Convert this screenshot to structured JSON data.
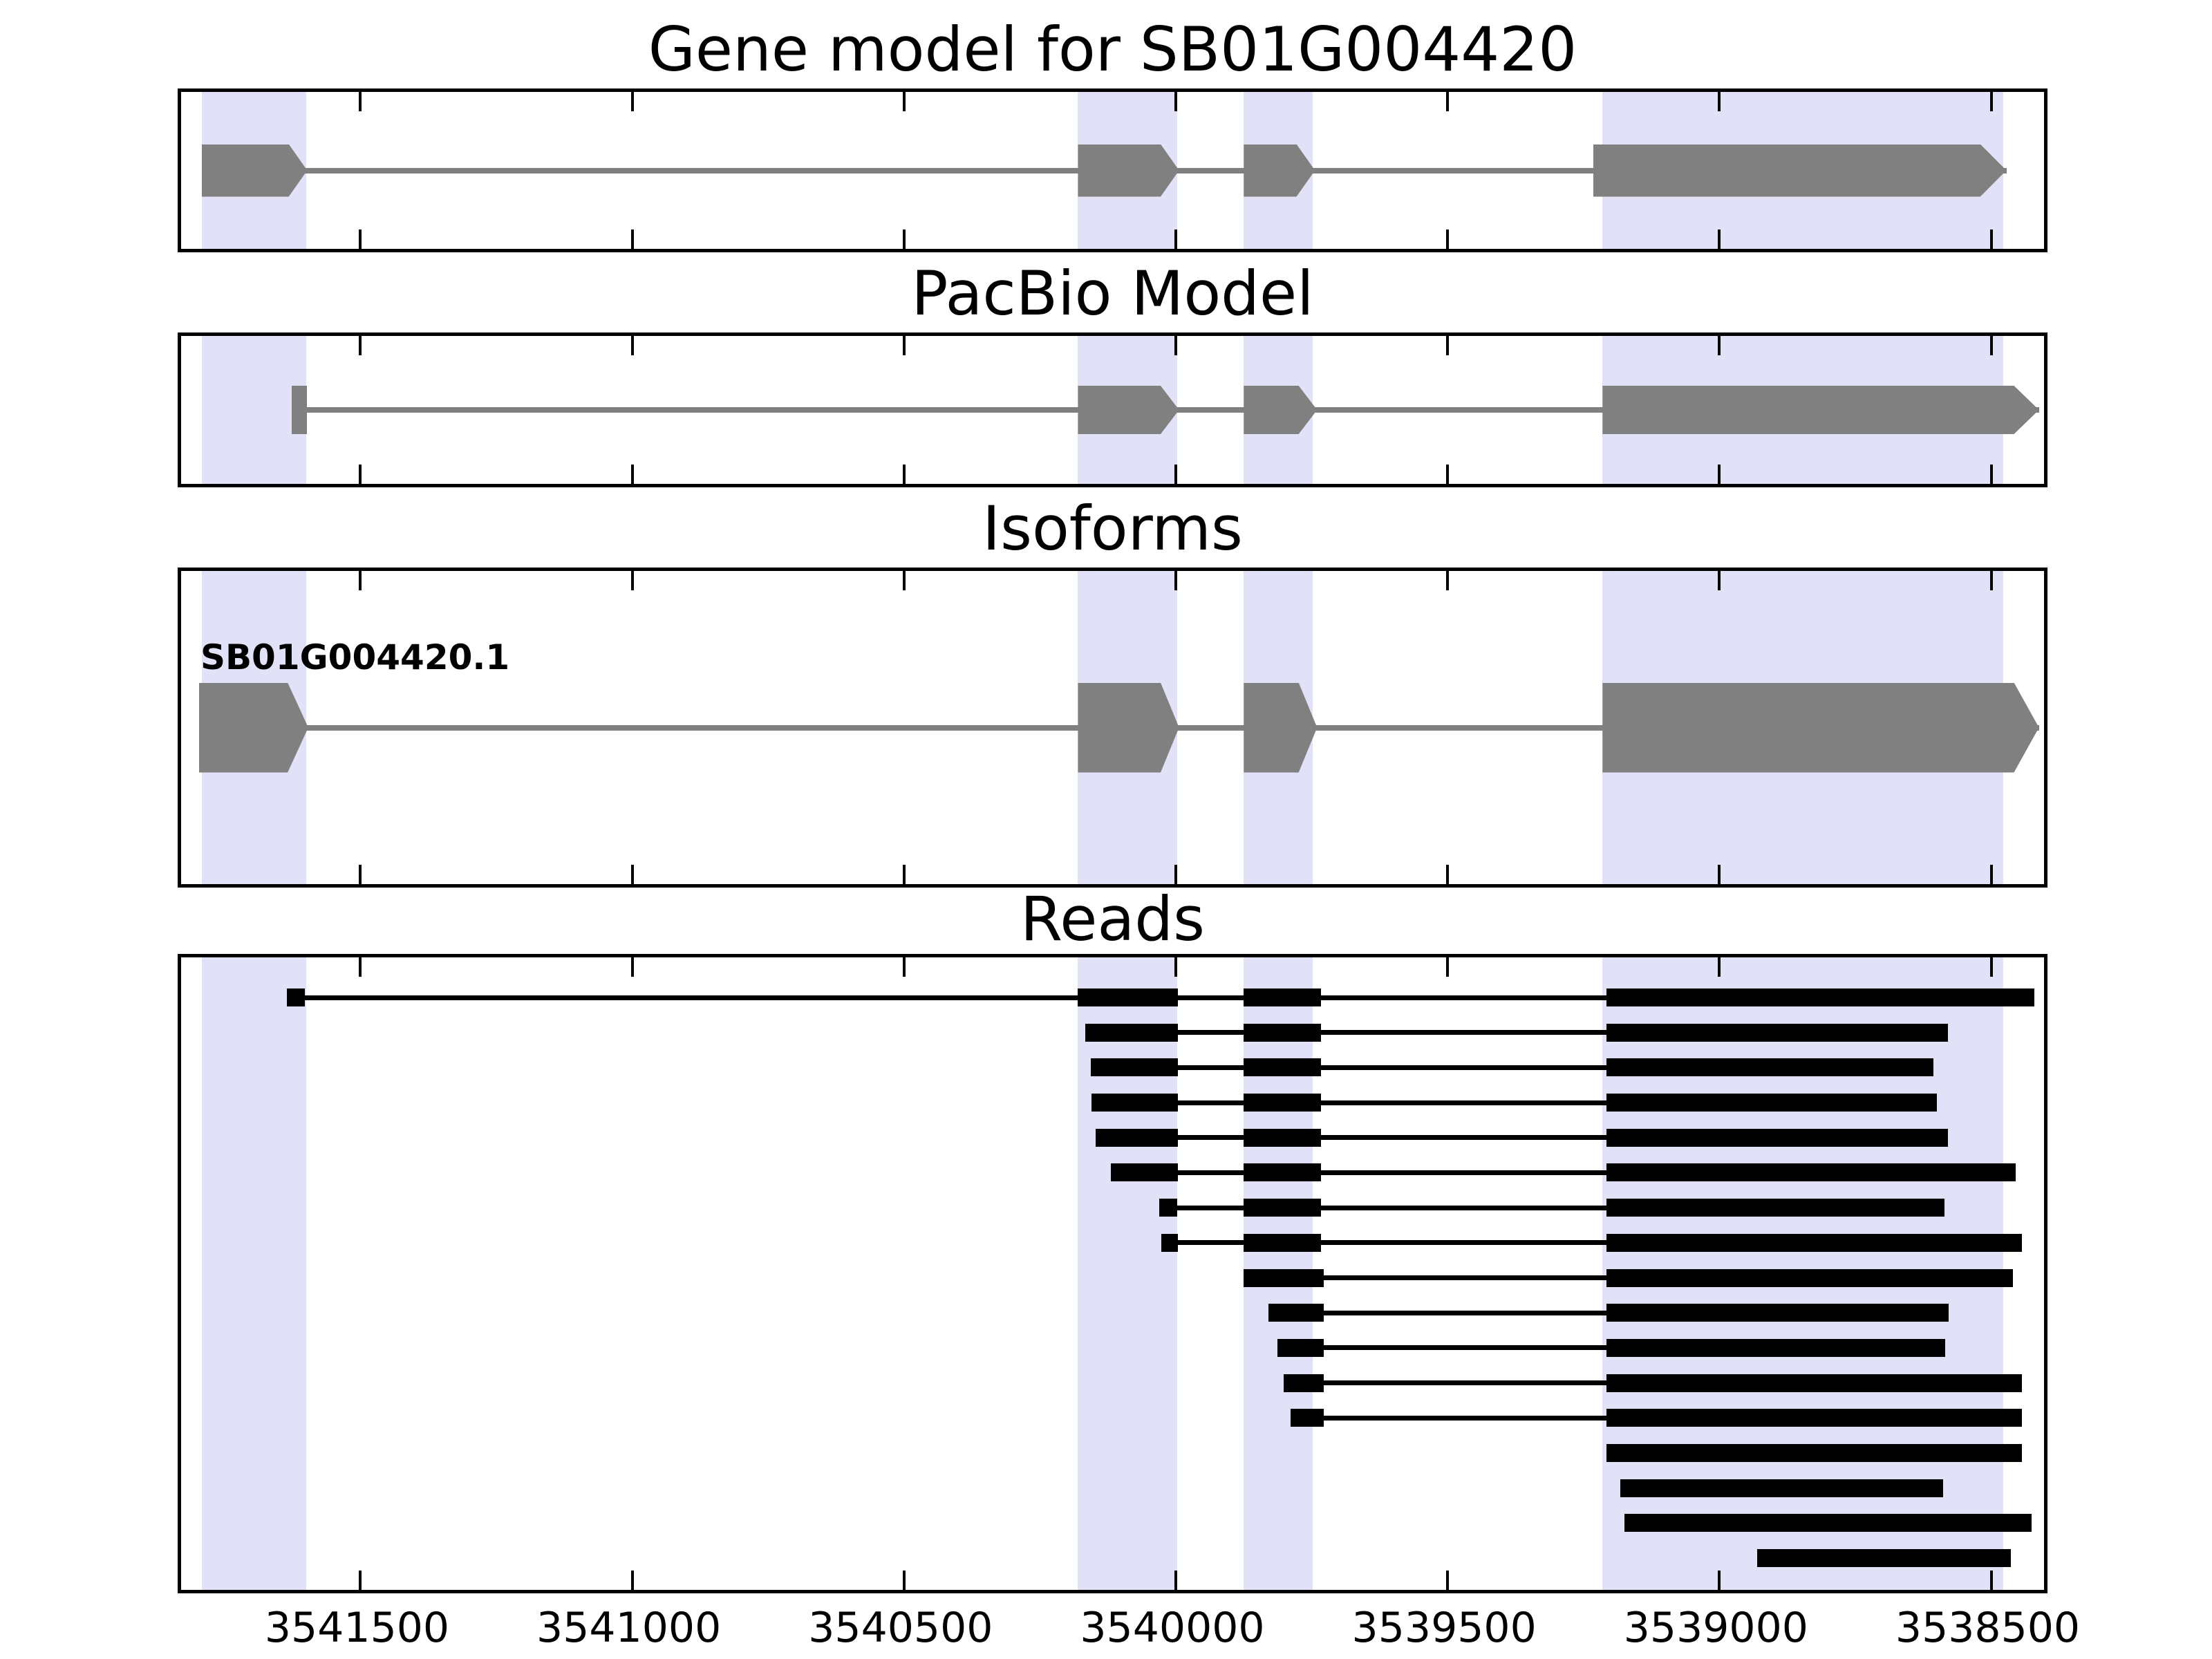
{
  "colors": {
    "background": "#ffffff",
    "highlight_band": "#e1e1f7",
    "gene_feature_gray": "#808080",
    "read_black": "#000000",
    "axis_border": "#000000",
    "text": "#000000"
  },
  "chart_data": {
    "type": "gene-model-genome-tracks",
    "x_axis": {
      "xlim_left": 3541830,
      "xlim_right": 3538390,
      "reversed": true,
      "tick_values": [
        3541500,
        3541000,
        3540500,
        3540000,
        3539500,
        3539000,
        3538500
      ],
      "tick_labels": [
        "3541500",
        "3541000",
        "3540500",
        "3540000",
        "3539500",
        "3539000",
        "3538500"
      ],
      "grid": false
    },
    "highlight_regions": [
      {
        "from": 3541792,
        "to": 3541600
      },
      {
        "from": 3540180,
        "to": 3539998
      },
      {
        "from": 3539875,
        "to": 3539748
      },
      {
        "from": 3539215,
        "to": 3538478
      }
    ],
    "arrow_direction": "right",
    "panels": [
      {
        "title": "Gene model for SB01G004420",
        "kind": "transcript",
        "features": [
          {
            "start": 3541792,
            "body_end": 3541632,
            "tip_end": 3541598
          },
          {
            "start": 3540180,
            "body_end": 3540028,
            "tip_end": 3539994
          },
          {
            "start": 3539875,
            "body_end": 3539778,
            "tip_end": 3539744
          },
          {
            "start": 3539232,
            "body_end": 3538520,
            "tip_end": 3538472
          }
        ]
      },
      {
        "title": "PacBio Model",
        "kind": "transcript",
        "features": [
          {
            "start": 3541626,
            "body_end": 3541598,
            "tip_end": 3541598
          },
          {
            "start": 3540180,
            "body_end": 3540028,
            "tip_end": 3539994
          },
          {
            "start": 3539875,
            "body_end": 3539774,
            "tip_end": 3539740
          },
          {
            "start": 3539215,
            "body_end": 3538458,
            "tip_end": 3538412
          }
        ]
      },
      {
        "title": "Isoforms",
        "kind": "transcript",
        "isoform_label": "SB01G004420.1",
        "features": [
          {
            "start": 3541797,
            "body_end": 3541634,
            "tip_end": 3541596
          },
          {
            "start": 3540180,
            "body_end": 3540028,
            "tip_end": 3539994
          },
          {
            "start": 3539875,
            "body_end": 3539774,
            "tip_end": 3539740
          },
          {
            "start": 3539215,
            "body_end": 3538458,
            "tip_end": 3538412
          }
        ]
      },
      {
        "title": "Reads",
        "kind": "reads",
        "reads": [
          {
            "blocks": [
              [
                3541636,
                3541602
              ],
              [
                3540180,
                3539996
              ],
              [
                3539875,
                3539733
              ],
              [
                3539208,
                3538420
              ]
            ]
          },
          {
            "blocks": [
              [
                3540167,
                3539996
              ],
              [
                3539875,
                3539733
              ],
              [
                3539208,
                3538580
              ]
            ]
          },
          {
            "blocks": [
              [
                3540157,
                3539996
              ],
              [
                3539875,
                3539733
              ],
              [
                3539208,
                3538606
              ]
            ]
          },
          {
            "blocks": [
              [
                3540155,
                3539996
              ],
              [
                3539875,
                3539733
              ],
              [
                3539208,
                3538600
              ]
            ]
          },
          {
            "blocks": [
              [
                3540148,
                3539996
              ],
              [
                3539875,
                3539733
              ],
              [
                3539208,
                3538580
              ]
            ]
          },
          {
            "blocks": [
              [
                3540119,
                3539996
              ],
              [
                3539875,
                3539733
              ],
              [
                3539208,
                3538455
              ]
            ]
          },
          {
            "blocks": [
              [
                3540030,
                3539998
              ],
              [
                3539875,
                3539733
              ],
              [
                3539208,
                3538586
              ]
            ]
          },
          {
            "blocks": [
              [
                3540027,
                3539996
              ],
              [
                3539875,
                3539733
              ],
              [
                3539208,
                3538444
              ]
            ]
          },
          {
            "blocks": [
              [
                3539875,
                3539728
              ],
              [
                3539208,
                3538460
              ]
            ]
          },
          {
            "blocks": [
              [
                3539830,
                3539728
              ],
              [
                3539208,
                3538578
              ]
            ]
          },
          {
            "blocks": [
              [
                3539813,
                3539728
              ],
              [
                3539208,
                3538584
              ]
            ]
          },
          {
            "blocks": [
              [
                3539802,
                3539728
              ],
              [
                3539208,
                3538444
              ]
            ]
          },
          {
            "blocks": [
              [
                3539789,
                3539728
              ],
              [
                3539208,
                3538444
              ]
            ]
          },
          {
            "blocks": [
              [
                3539208,
                3538444
              ]
            ]
          },
          {
            "blocks": [
              [
                3539182,
                3538588
              ]
            ]
          },
          {
            "blocks": [
              [
                3539175,
                3538426
              ]
            ]
          },
          {
            "blocks": [
              [
                3538930,
                3538464
              ]
            ]
          }
        ]
      }
    ]
  }
}
